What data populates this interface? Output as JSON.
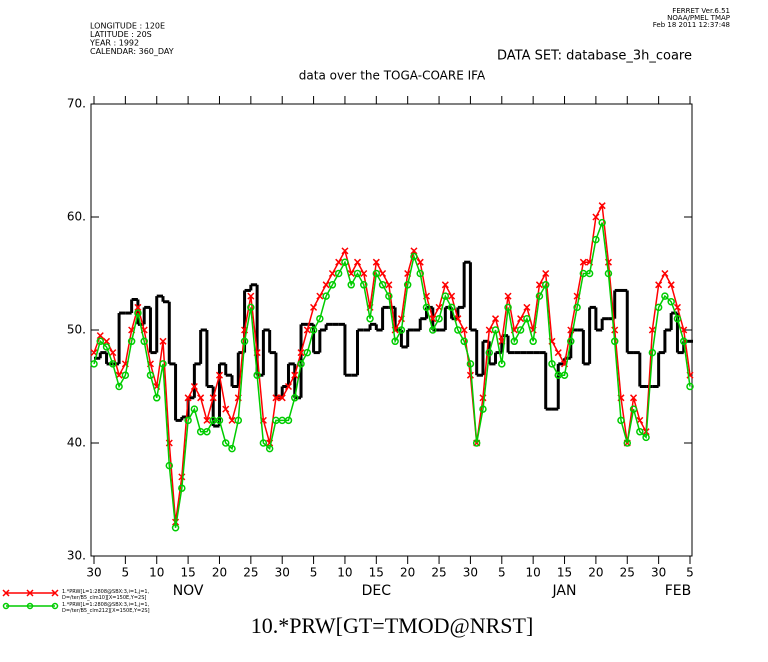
{
  "chart_data": {
    "type": "line",
    "title": "data over the TOGA-COARE IFA",
    "dataset": "DATA SET: database_3h_coare",
    "header_left": [
      "LONGITUDE : 120E",
      "LATITUDE : 20S",
      "YEAR : 1992",
      "CALENDAR: 360_DAY"
    ],
    "header_right": [
      "FERRET  Ver.6.51",
      "NOAA/PMEL TMAP",
      "Feb 18 2011 12:37:48"
    ],
    "x": [
      "1992-10-30",
      "1992-11-01",
      "1992-11-02",
      "1992-11-03",
      "1992-11-04",
      "1992-11-05",
      "1992-11-06",
      "1992-11-07",
      "1992-11-08",
      "1992-11-09",
      "1992-11-10",
      "1992-11-11",
      "1992-11-12",
      "1992-11-13",
      "1992-11-14",
      "1992-11-15",
      "1992-11-16",
      "1992-11-17",
      "1992-11-18",
      "1992-11-19",
      "1992-11-20",
      "1992-11-21",
      "1992-11-22",
      "1992-11-23",
      "1992-11-24",
      "1992-11-25",
      "1992-11-26",
      "1992-11-27",
      "1992-11-28",
      "1992-11-29",
      "1992-11-30",
      "1992-12-01",
      "1992-12-02",
      "1992-12-03",
      "1992-12-04",
      "1992-12-05",
      "1992-12-06",
      "1992-12-07",
      "1992-12-08",
      "1992-12-09",
      "1992-12-10",
      "1992-12-11",
      "1992-12-12",
      "1992-12-13",
      "1992-12-14",
      "1992-12-15",
      "1992-12-16",
      "1992-12-17",
      "1992-12-18",
      "1992-12-19",
      "1992-12-20",
      "1992-12-21",
      "1992-12-22",
      "1992-12-23",
      "1992-12-24",
      "1992-12-25",
      "1992-12-26",
      "1992-12-27",
      "1992-12-28",
      "1992-12-29",
      "1992-12-30",
      "1993-01-01",
      "1993-01-02",
      "1993-01-03",
      "1993-01-04",
      "1993-01-05",
      "1993-01-06",
      "1993-01-07",
      "1993-01-08",
      "1993-01-09",
      "1993-01-10",
      "1993-01-11",
      "1993-01-12",
      "1993-01-13",
      "1993-01-14",
      "1993-01-15",
      "1993-01-16",
      "1993-01-17",
      "1993-01-18",
      "1993-01-19",
      "1993-01-20",
      "1993-01-21",
      "1993-01-22",
      "1993-01-23",
      "1993-01-24",
      "1993-01-25",
      "1993-01-26",
      "1993-01-27",
      "1993-01-28",
      "1993-01-29",
      "1993-01-30",
      "1993-02-01",
      "1993-02-02",
      "1993-02-03",
      "1993-02-04",
      "1993-02-05"
    ],
    "series": [
      {
        "name": "10.*PRW[GT=TMOD@NRST]",
        "color": "#000000",
        "style": "step",
        "values": [
          47.5,
          48,
          47,
          47,
          51.5,
          51.5,
          52.7,
          50.5,
          52,
          48,
          53,
          52.5,
          47,
          42,
          42.3,
          44,
          47,
          50,
          45,
          41.5,
          47,
          46,
          45,
          48,
          53.5,
          54,
          46,
          50,
          48,
          44,
          45,
          47,
          44,
          50.5,
          50.5,
          48,
          50,
          50.5,
          50.5,
          50.5,
          46,
          46,
          50,
          50,
          50.5,
          50,
          52,
          52,
          50,
          48.5,
          50,
          50,
          51,
          52,
          50,
          50,
          52,
          51,
          52,
          56,
          50,
          46,
          49,
          47,
          48,
          49.5,
          48,
          48,
          48,
          48,
          48,
          48,
          43,
          43,
          47,
          47.5,
          50,
          50,
          47,
          52,
          50,
          51,
          51,
          53.5,
          53.5,
          48,
          48,
          45,
          45,
          45,
          48,
          50,
          51.5,
          48,
          49,
          49
        ]
      },
      {
        "name": "1.*PRW[L=1:2808@SBX:3,i=1,j=1,\nD=/ter/B5_clm10][X=150E,Y=2S]",
        "color": "#ff0000",
        "style": "x",
        "values": [
          48,
          49.5,
          49,
          48,
          46,
          47,
          50,
          52,
          50,
          47,
          45,
          49,
          40,
          33,
          37,
          44,
          45,
          44,
          42,
          44,
          46,
          43,
          42,
          44,
          50,
          53,
          48,
          42,
          40,
          44,
          44,
          45,
          46,
          48,
          50,
          52,
          53,
          54,
          55,
          56,
          57,
          55,
          56,
          55,
          52,
          56,
          55,
          54,
          50,
          51,
          55,
          57,
          56,
          53,
          51,
          52,
          54,
          53,
          51,
          50,
          46,
          40,
          44,
          50,
          51,
          49,
          53,
          50,
          51,
          52,
          50,
          54,
          55,
          49,
          48,
          47,
          50,
          53,
          56,
          56,
          60,
          61,
          56,
          50,
          44,
          40,
          44,
          42,
          41,
          50,
          54,
          55,
          54,
          52,
          50,
          46
        ]
      },
      {
        "name": "1.*PRW[L=1:2808@SBX:3,i=1,j=1,\nD=/ter/B5_clm212][X=150E,Y=2S]",
        "color": "#00cc00",
        "style": "circle",
        "values": [
          47,
          49,
          48.5,
          47,
          45,
          46,
          49,
          51.5,
          49,
          46,
          44,
          47,
          38,
          32.5,
          36,
          42,
          43,
          41,
          41,
          42,
          42,
          40,
          39.5,
          42,
          49,
          52,
          46,
          40,
          39.5,
          42,
          42,
          42,
          44,
          47,
          48,
          50,
          51,
          53,
          54,
          55,
          56,
          54,
          55,
          54,
          51,
          55,
          54,
          53,
          49,
          50,
          54,
          56.5,
          55,
          52,
          50,
          51,
          53,
          52,
          50,
          49,
          47,
          40,
          43,
          48,
          50,
          47,
          52,
          49,
          50,
          51,
          49,
          53,
          54,
          47,
          46,
          46,
          49,
          52,
          55,
          55,
          58,
          59.5,
          55,
          49,
          42,
          40,
          43,
          41,
          40.5,
          48,
          52,
          53,
          52.5,
          51,
          49,
          45
        ]
      }
    ],
    "xlim": [
      "1992-10-30",
      "1993-02-05"
    ],
    "xticks": [
      {
        "value": "1992-10-30",
        "label": "30"
      },
      {
        "value": "1992-11-05",
        "label": "5"
      },
      {
        "value": "1992-11-10",
        "label": "10"
      },
      {
        "value": "1992-11-15",
        "label": "15"
      },
      {
        "value": "1992-11-20",
        "label": "20"
      },
      {
        "value": "1992-11-25",
        "label": "25"
      },
      {
        "value": "1992-11-30",
        "label": "30"
      },
      {
        "value": "1992-12-05",
        "label": "5"
      },
      {
        "value": "1992-12-10",
        "label": "10"
      },
      {
        "value": "1992-12-15",
        "label": "15"
      },
      {
        "value": "1992-12-20",
        "label": "20"
      },
      {
        "value": "1992-12-25",
        "label": "25"
      },
      {
        "value": "1992-12-30",
        "label": "30"
      },
      {
        "value": "1993-01-05",
        "label": "5"
      },
      {
        "value": "1993-01-10",
        "label": "10"
      },
      {
        "value": "1993-01-15",
        "label": "15"
      },
      {
        "value": "1993-01-20",
        "label": "20"
      },
      {
        "value": "1993-01-25",
        "label": "25"
      },
      {
        "value": "1993-01-30",
        "label": "30"
      },
      {
        "value": "1993-02-05",
        "label": "5"
      }
    ],
    "month_labels": [
      {
        "value": "1992-11-15",
        "label": "NOV"
      },
      {
        "value": "1992-12-15",
        "label": "DEC"
      },
      {
        "value": "1993-01-15",
        "label": "JAN"
      },
      {
        "value": "1993-02-05",
        "label": "FEB"
      }
    ],
    "ylim": [
      30,
      70
    ],
    "yticks": [
      {
        "value": 30,
        "label": "30."
      },
      {
        "value": 40,
        "label": "40."
      },
      {
        "value": 50,
        "label": "50."
      },
      {
        "value": 60,
        "label": "60."
      },
      {
        "value": 70,
        "label": "70."
      }
    ]
  }
}
